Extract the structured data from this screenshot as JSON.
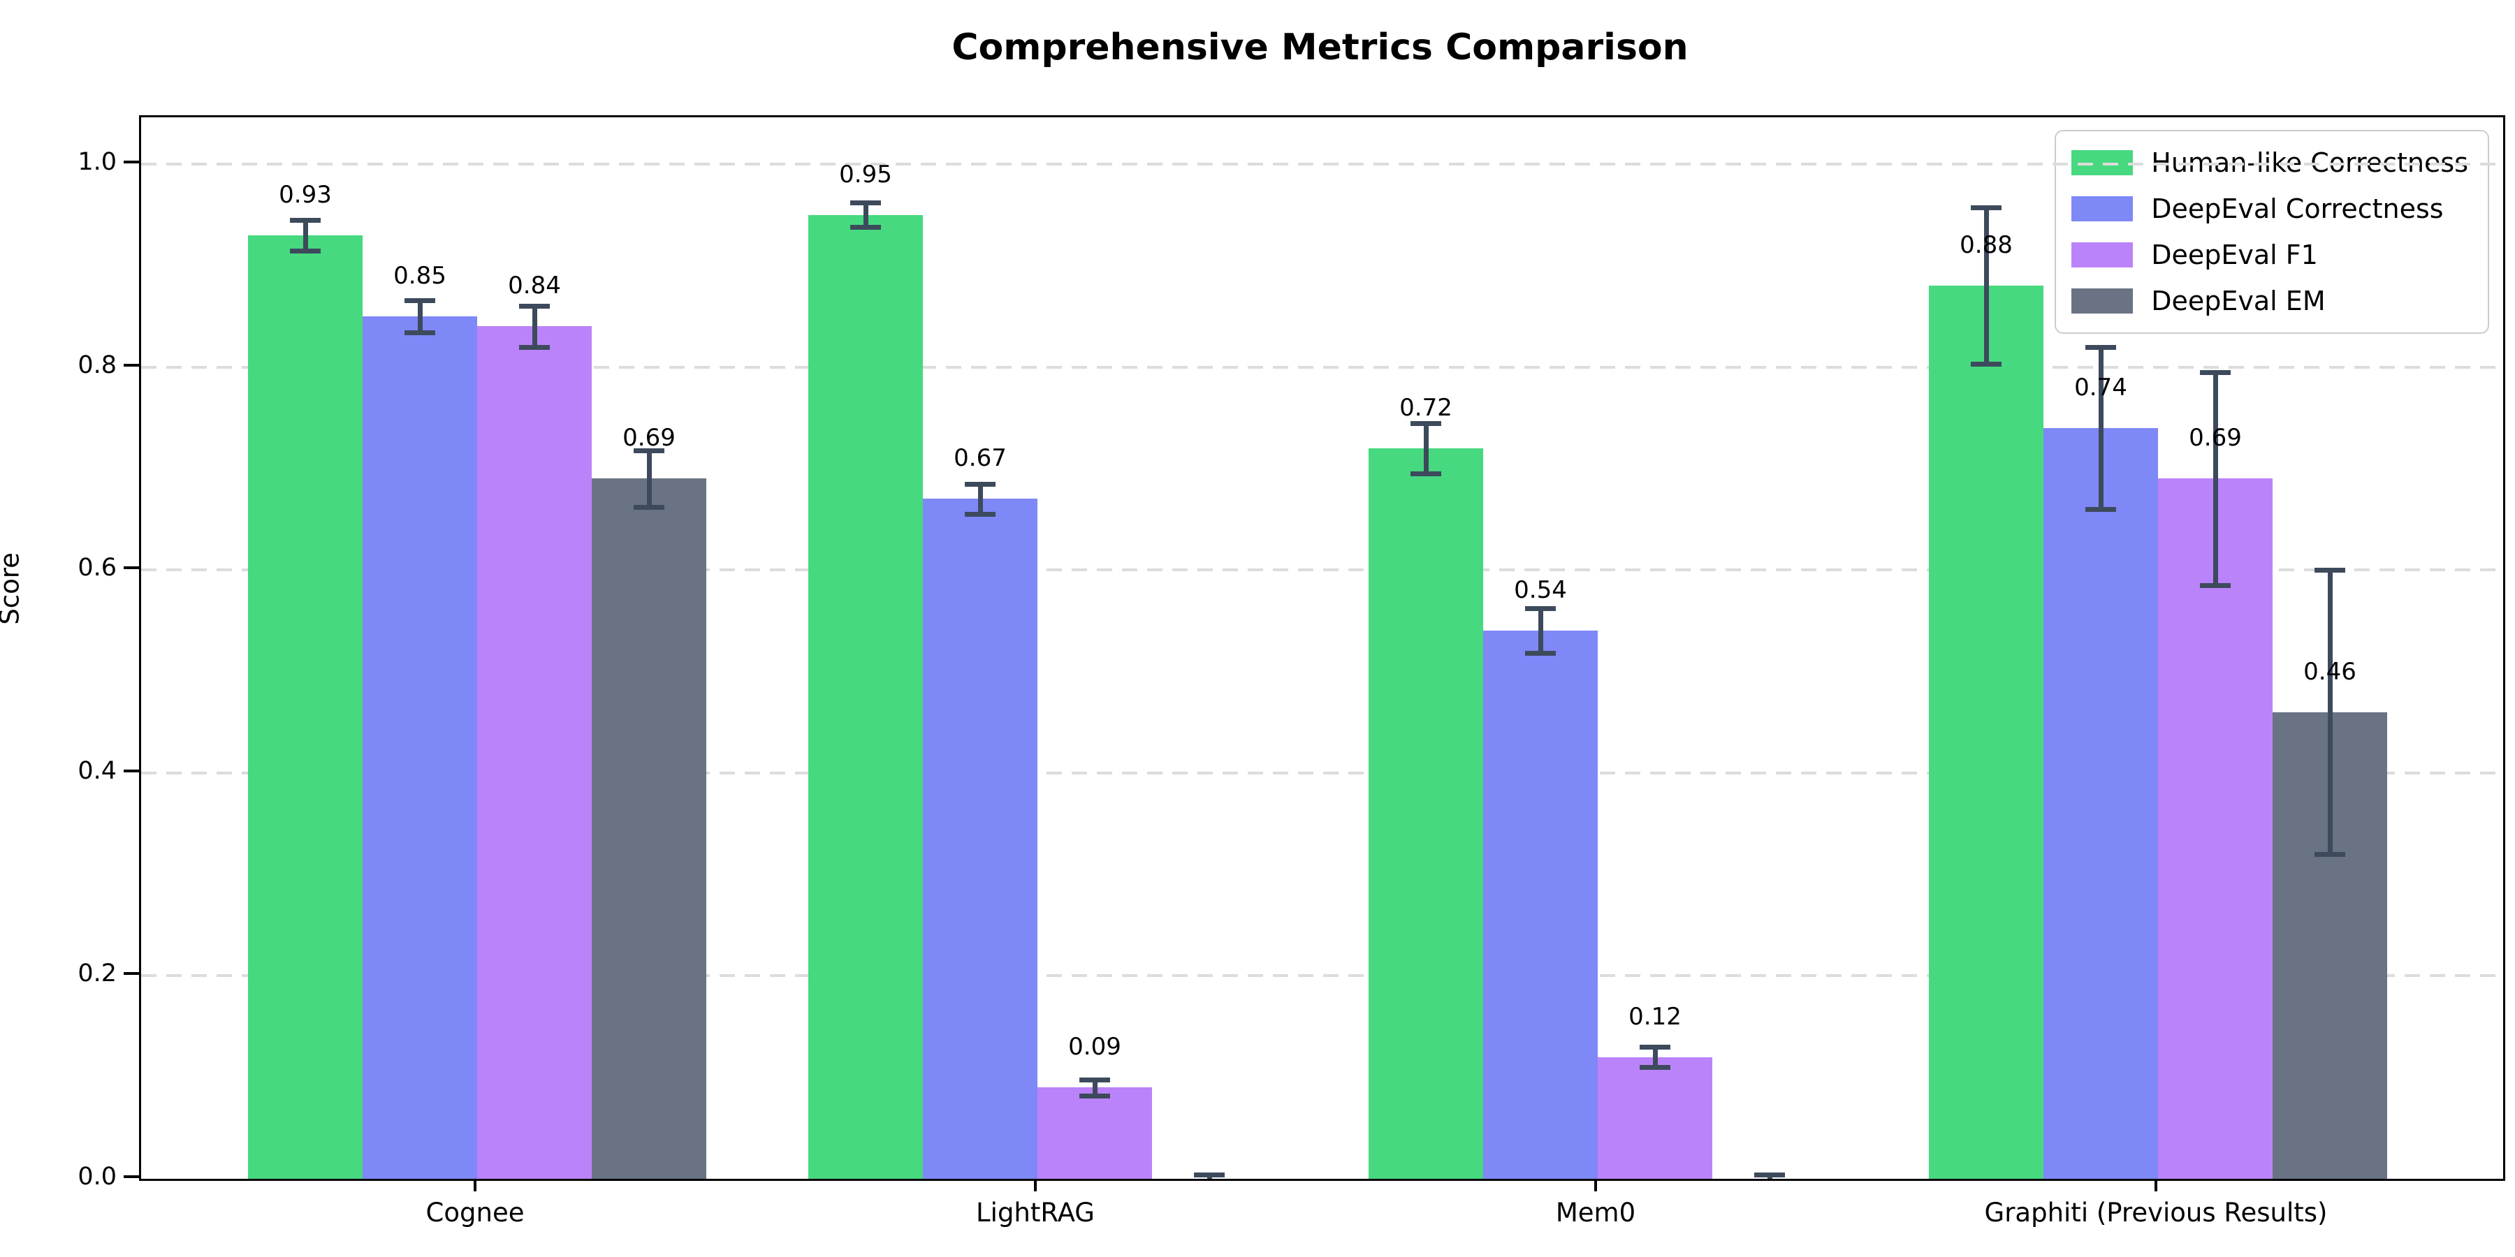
{
  "title": "Comprehensive Metrics Comparison",
  "chart_data": {
    "type": "bar",
    "title": "Comprehensive Metrics Comparison",
    "xlabel": "",
    "ylabel": "Score",
    "ylim": [
      0.0,
      1.046
    ],
    "yticks": [
      0.0,
      0.2,
      0.4,
      0.6,
      0.8,
      1.0
    ],
    "ytick_labels": [
      "0.0",
      "0.2",
      "0.4",
      "0.6",
      "0.8",
      "1.0"
    ],
    "grid": "horizontal-dashed",
    "legend_position": "upper-right",
    "categories": [
      "Cognee",
      "LightRAG",
      "Mem0",
      "Graphiti (Previous Results)"
    ],
    "series": [
      {
        "name": "Human-like Correctness",
        "color": "#46d97f",
        "values": [
          0.93,
          0.95,
          0.72,
          0.88
        ],
        "errors": [
          0.015,
          0.012,
          0.025,
          0.077
        ],
        "labels": [
          "0.93",
          "0.95",
          "0.72",
          "0.88"
        ]
      },
      {
        "name": "DeepEval Correctness",
        "color": "#7f88f7",
        "values": [
          0.85,
          0.67,
          0.54,
          0.74
        ],
        "errors": [
          0.016,
          0.015,
          0.022,
          0.08
        ],
        "labels": [
          "0.85",
          "0.67",
          "0.54",
          "0.74"
        ]
      },
      {
        "name": "DeepEval F1",
        "color": "#bb83f9",
        "values": [
          0.84,
          0.09,
          0.12,
          0.69
        ],
        "errors": [
          0.02,
          0.008,
          0.01,
          0.105
        ],
        "labels": [
          "0.84",
          "0.09",
          "0.12",
          "0.69"
        ]
      },
      {
        "name": "DeepEval EM",
        "color": "#697383",
        "values": [
          0.69,
          0.0,
          0.0,
          0.46
        ],
        "errors": [
          0.028,
          0.004,
          0.004,
          0.14
        ],
        "labels": [
          "0.69",
          "",
          "",
          "0.46"
        ]
      }
    ],
    "colors": {
      "errorbar": "#3d4a5c",
      "gridline": "#dcdcdc",
      "spine": "#000000",
      "background": "#ffffff"
    }
  }
}
